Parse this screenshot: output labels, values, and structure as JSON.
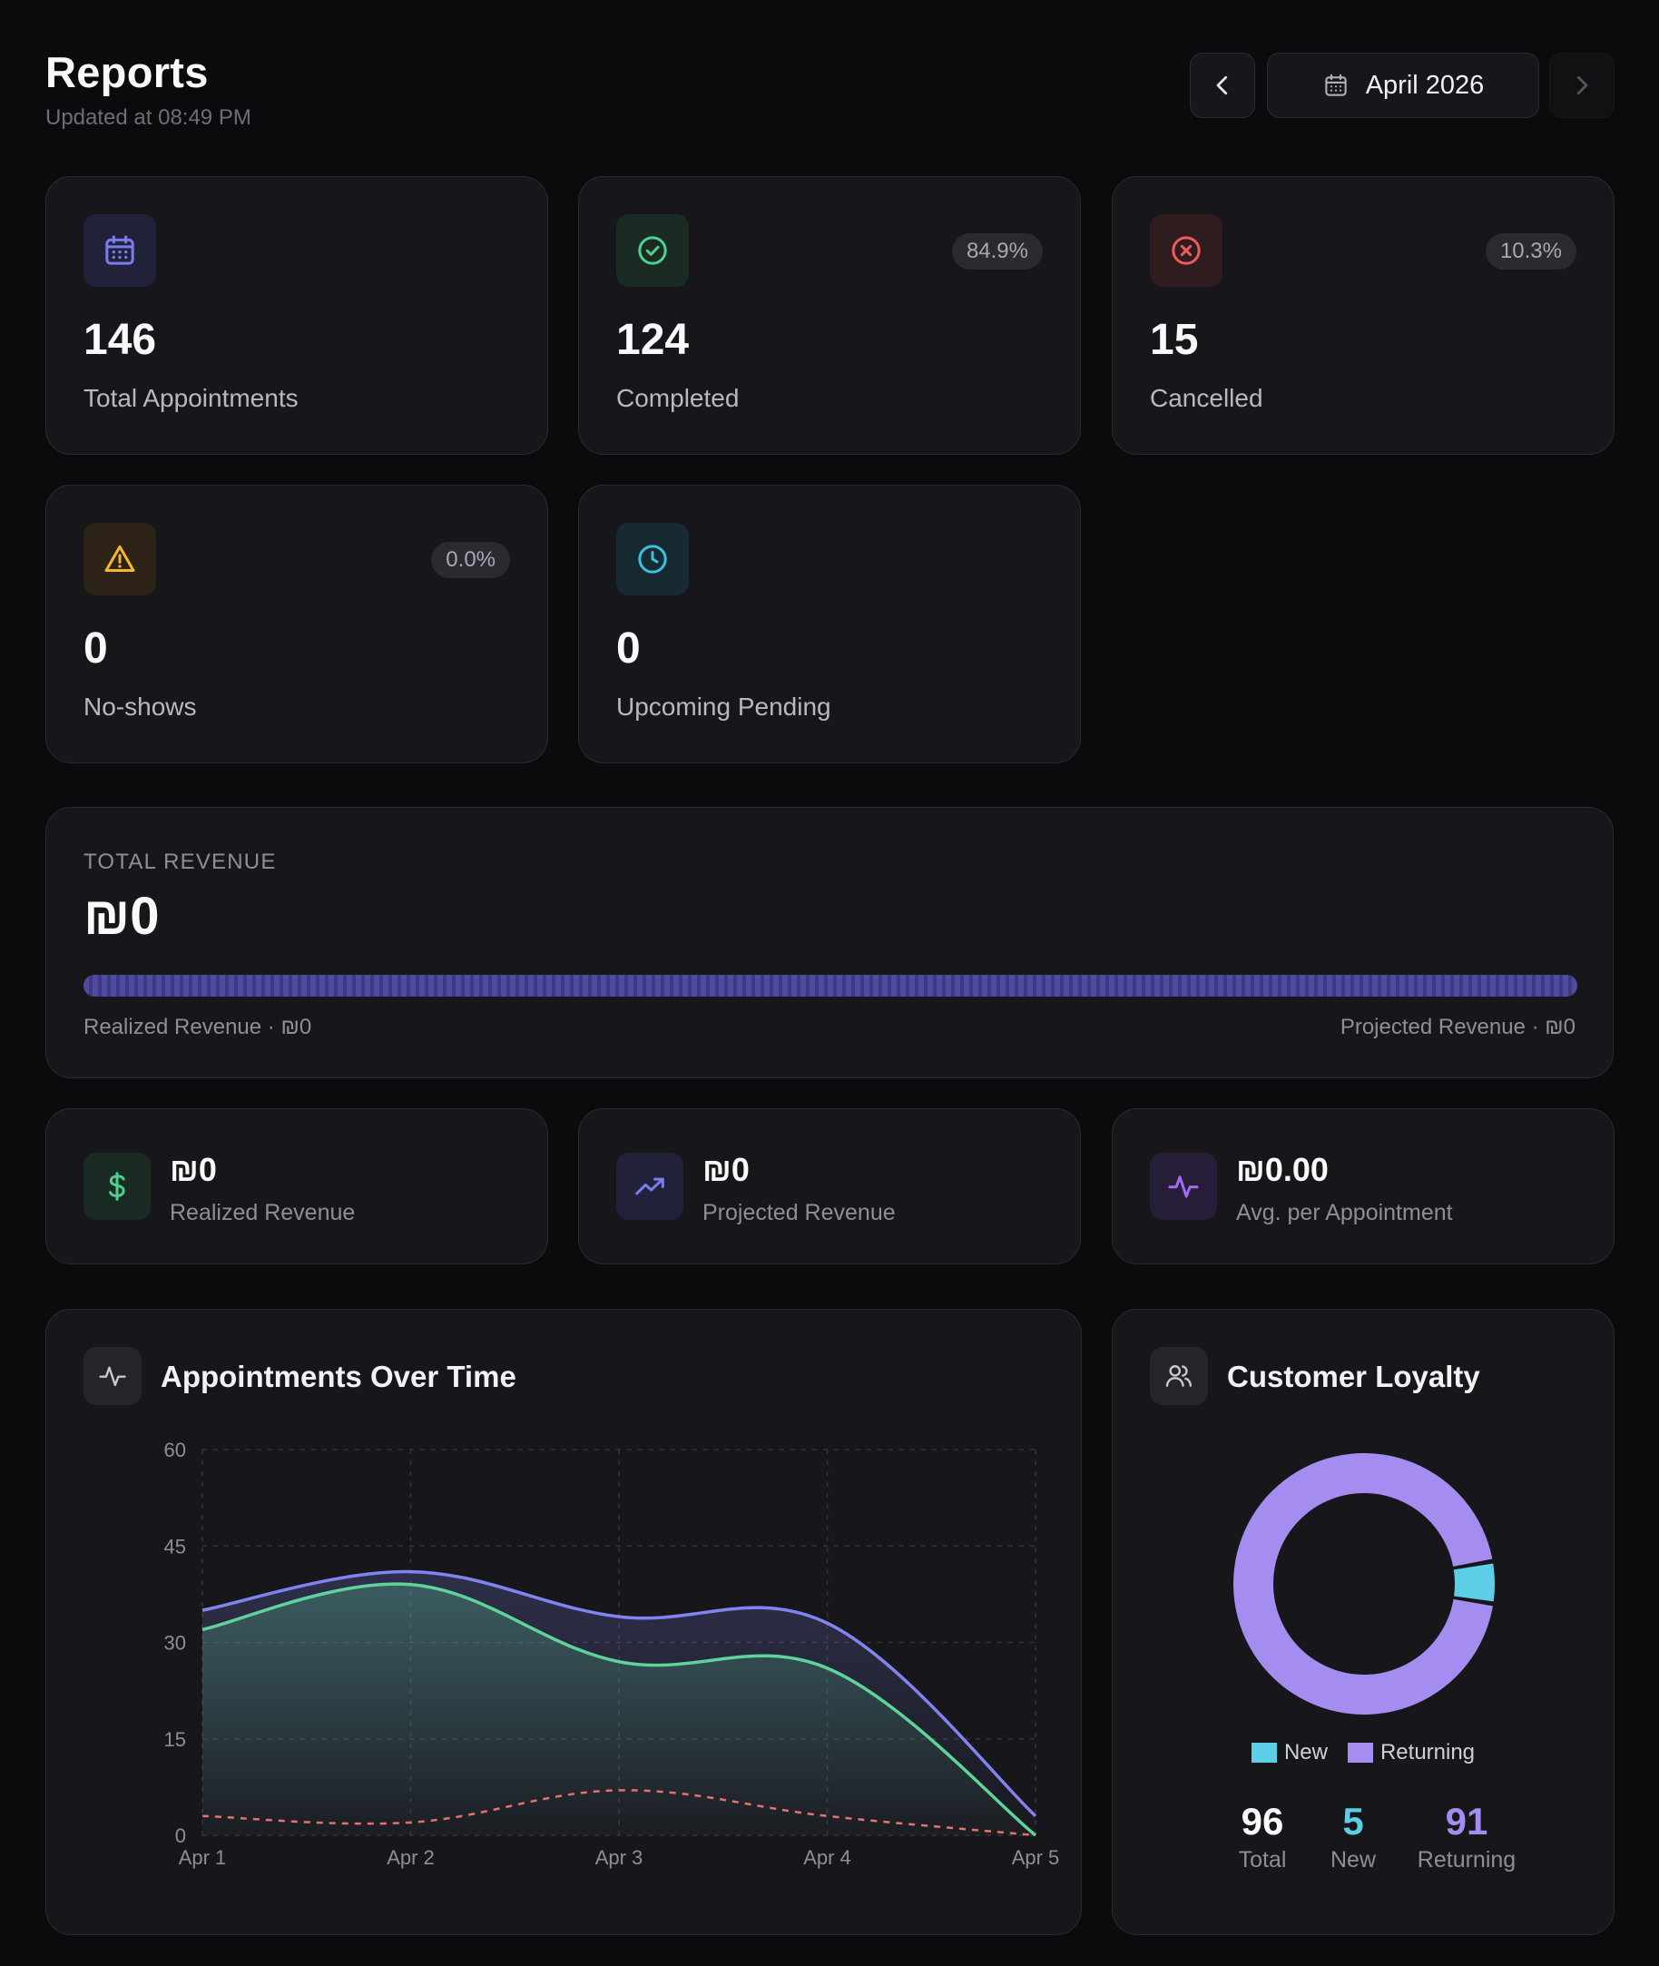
{
  "header": {
    "title": "Reports",
    "updated": "Updated at 08:49 PM",
    "month": "April 2026",
    "prev_icon": "chevron-left-icon",
    "next_icon": "chevron-right-icon",
    "calendar_icon": "calendar-icon"
  },
  "stats": [
    {
      "value": "146",
      "label": "Total Appointments",
      "badge": "",
      "icon": "calendar-icon",
      "color": "#7b7cf0"
    },
    {
      "value": "124",
      "label": "Completed",
      "badge": "84.9%",
      "icon": "check-circle-icon",
      "color": "#4fd08f"
    },
    {
      "value": "15",
      "label": "Cancelled",
      "badge": "10.3%",
      "icon": "x-circle-icon",
      "color": "#ef5b5b"
    },
    {
      "value": "0",
      "label": "No-shows",
      "badge": "0.0%",
      "icon": "warning-triangle-icon",
      "color": "#f3b730"
    },
    {
      "value": "0",
      "label": "Upcoming Pending",
      "badge": "",
      "icon": "clock-icon",
      "color": "#3cc0e0"
    }
  ],
  "revenue": {
    "title": "TOTAL REVENUE",
    "value": "₪0",
    "realized_text": "Realized Revenue · ₪0",
    "projected_text": "Projected Revenue · ₪0"
  },
  "mini": [
    {
      "value": "₪0",
      "label": "Realized Revenue",
      "icon": "dollar-icon",
      "color": "#4fd08f"
    },
    {
      "value": "₪0",
      "label": "Projected Revenue",
      "icon": "trending-up-icon",
      "color": "#7b7cf0"
    },
    {
      "value": "₪0.00",
      "label": "Avg. per Appointment",
      "icon": "activity-icon",
      "color": "#a06ef0"
    }
  ],
  "appointments_chart": {
    "title": "Appointments Over Time",
    "icon": "activity-icon"
  },
  "loyalty": {
    "title": "Customer Loyalty",
    "icon": "users-icon",
    "legend_new": "New",
    "legend_returning": "Returning",
    "total_value": "96",
    "total_label": "Total",
    "new_value": "5",
    "new_label": "New",
    "returning_value": "91",
    "returning_label": "Returning",
    "new_color": "#5ccfe6",
    "returning_color": "#a48cf0"
  },
  "chart_data": [
    {
      "type": "area",
      "title": "Appointments Over Time",
      "categories": [
        "Apr 1",
        "Apr 2",
        "Apr 3",
        "Apr 4",
        "Apr 5"
      ],
      "yticks": [
        0,
        15,
        30,
        45,
        60
      ],
      "ylim": [
        0,
        60
      ],
      "grid": true,
      "series": [
        {
          "values": [
            35,
            41,
            34,
            33,
            3
          ],
          "color": "#8084f0",
          "style": "area"
        },
        {
          "values": [
            32,
            39,
            27,
            26,
            0
          ],
          "color": "#5ed39a",
          "style": "area"
        },
        {
          "values": [
            3,
            2,
            7,
            3,
            0
          ],
          "color": "#e8706e",
          "style": "dashed"
        }
      ]
    },
    {
      "type": "pie",
      "title": "Customer Loyalty",
      "categories": [
        "New",
        "Returning"
      ],
      "values": [
        5,
        91
      ],
      "colors": [
        "#5ccfe6",
        "#a48cf0"
      ],
      "donut": true
    }
  ]
}
